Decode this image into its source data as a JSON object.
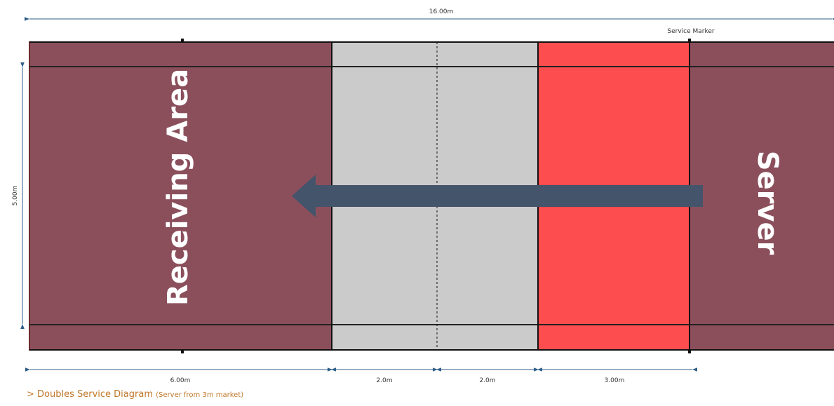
{
  "diagram": {
    "total_length": "16.00m",
    "width": "5.00m",
    "service_marker": "Service Marker",
    "receiving_area": "Receiving Area",
    "server": "Server",
    "segments": [
      "6.00m",
      "2.0m",
      "2.0m",
      "3.00m"
    ],
    "colors": {
      "receiving": "#8b4f5c",
      "neutral": "#cccbcc",
      "service_zone": "#fd4d4e",
      "arrow": "#44546a",
      "dimension": "#2e5d87"
    }
  },
  "caption": {
    "prefix": "> Doubles Service Diagram",
    "detail": "(Server from 3m market)"
  }
}
